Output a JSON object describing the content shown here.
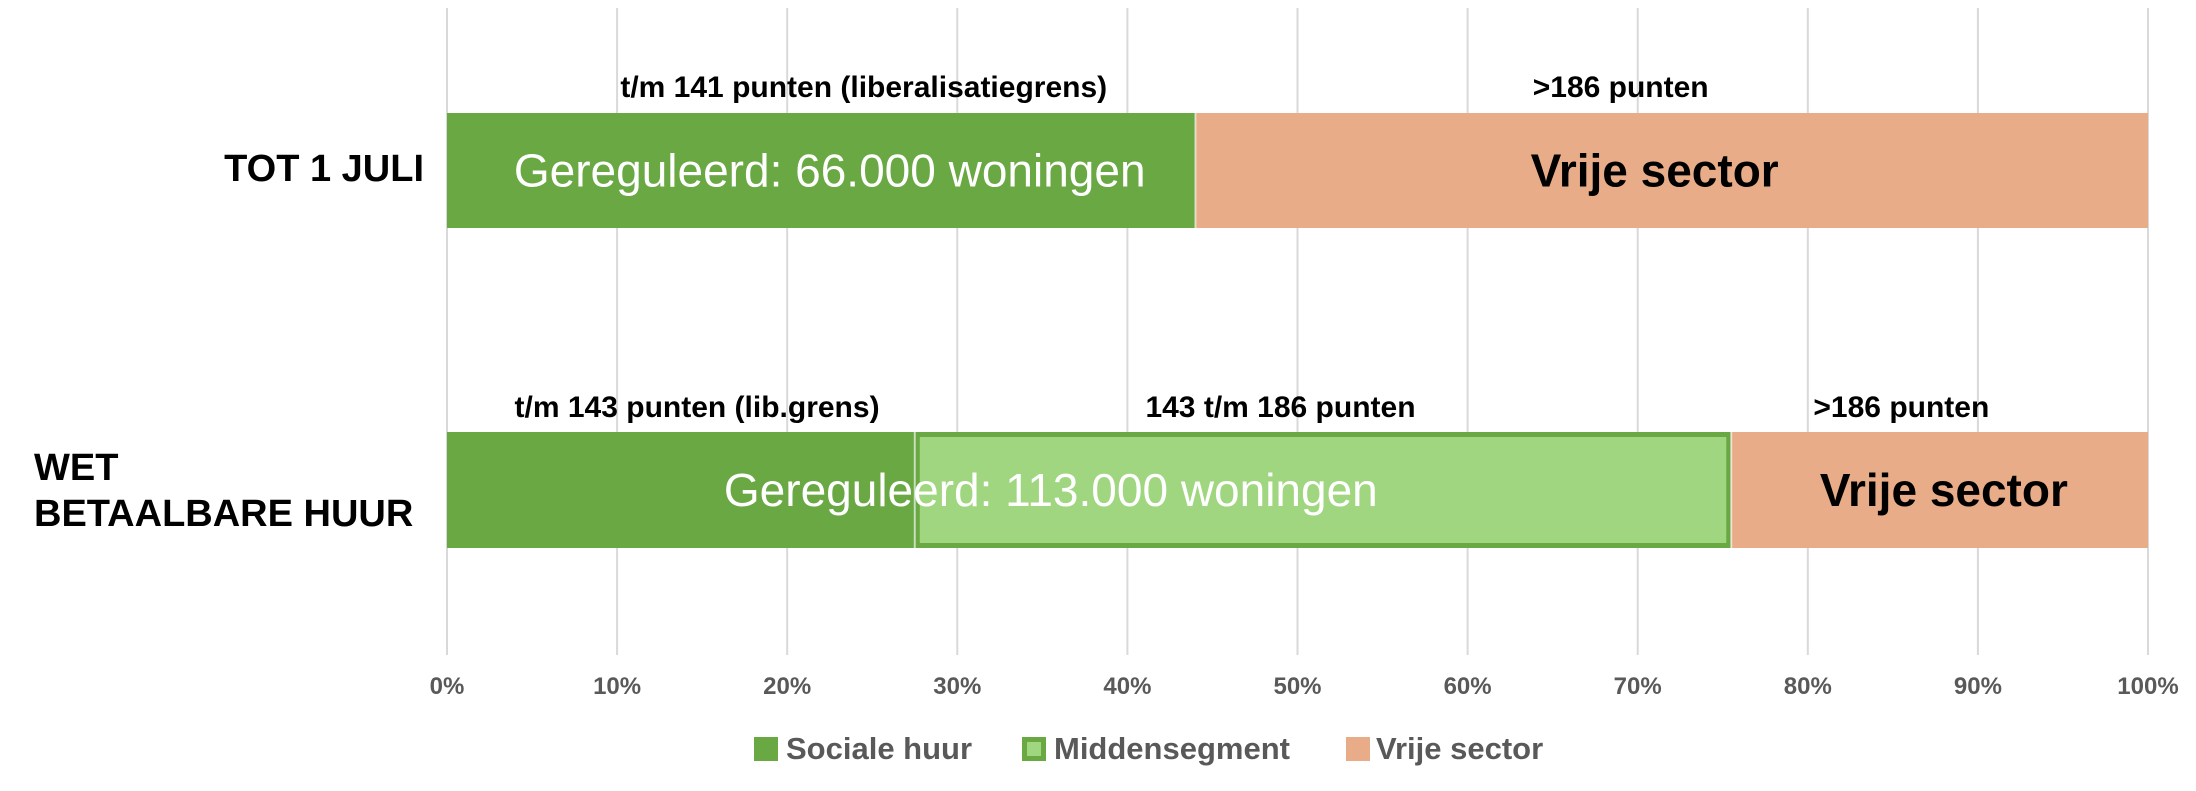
{
  "chart_data": {
    "type": "bar",
    "orientation": "horizontal",
    "stacked": true,
    "normalized": true,
    "title": "",
    "xlabel": "",
    "ylabel": "",
    "xlim": [
      0,
      100
    ],
    "x_tick_labels": [
      "0%",
      "10%",
      "20%",
      "30%",
      "40%",
      "50%",
      "60%",
      "70%",
      "80%",
      "90%",
      "100%"
    ],
    "grid": "vertical",
    "legend_position": "bottom",
    "categories": [
      "TOT 1 JULI",
      "WET BETAALBARE HUUR"
    ],
    "category_label_lines": [
      [
        "TOT 1 JULI"
      ],
      [
        "WET",
        "BETAALBARE HUUR"
      ]
    ],
    "series": [
      {
        "name": "Sociale huur",
        "color": "#6aa844",
        "values": [
          44,
          27.5
        ]
      },
      {
        "name": "Middensegment",
        "color": "#a0d67f",
        "border_color": "#6aa844",
        "values": [
          0,
          48
        ]
      },
      {
        "name": "Vrije sector",
        "color": "#e8ac88",
        "values": [
          56,
          24.5
        ]
      }
    ],
    "annotations": [
      {
        "category": "TOT 1 JULI",
        "range_labels": [
          {
            "text": "t/m 141 punten (liberalisatiegrens)",
            "center": 24.5
          },
          {
            "text": ">186 punten",
            "center": 69
          }
        ],
        "inner_labels": [
          {
            "text": "Gereguleerd: 66.000 woningen",
            "center": 22.5,
            "color": "#ffffff",
            "bold": false
          },
          {
            "text": "Vrije sector",
            "center": 71,
            "color": "#000000",
            "bold": true
          }
        ]
      },
      {
        "category": "WET BETAALBARE HUUR",
        "range_labels": [
          {
            "text": "t/m 143 punten (lib.grens)",
            "center": 14.7
          },
          {
            "text": "143 t/m 186 punten",
            "center": 49
          },
          {
            "text": ">186 punten",
            "center": 85.5
          }
        ],
        "inner_labels": [
          {
            "text": "Gereguleerd: 113.000 woningen",
            "center": 35.5,
            "color": "#ffffff",
            "bold": false
          },
          {
            "text": "Vrije sector",
            "center": 88,
            "color": "#000000",
            "bold": true
          }
        ]
      }
    ],
    "colors": {
      "grid": "#d9d9d9",
      "tick_text": "#595959",
      "legend_text": "#595959",
      "category_text": "#000000",
      "range_label_text": "#000000"
    }
  }
}
